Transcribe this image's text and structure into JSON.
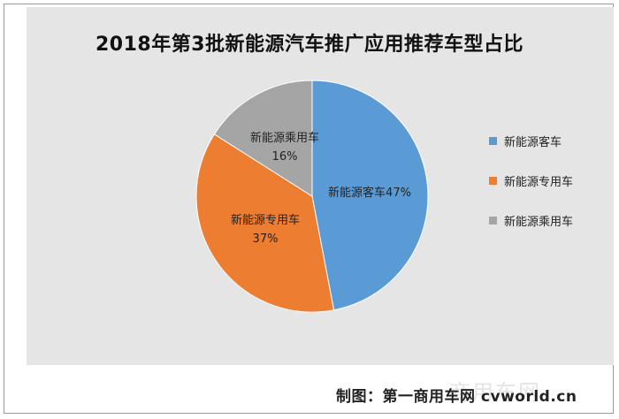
{
  "chart_data": {
    "type": "pie",
    "title": "2018年第3批新能源汽车推广应用推荐车型占比",
    "legend_position": "right",
    "slices": [
      {
        "name": "新能源客车",
        "value": 47,
        "label": "新能源客车47%",
        "color": "#5b9bd5"
      },
      {
        "name": "新能源专用车",
        "value": 37,
        "label_line1": "新能源专用车",
        "label_line2": "37%",
        "color": "#ed7d31"
      },
      {
        "name": "新能源乘用车",
        "value": 16,
        "label_line1": "新能源乘用车",
        "label_line2": "16%",
        "color": "#a5a5a5"
      }
    ]
  },
  "footer": {
    "credit": "制图：第一商用车网 cvworld.cn",
    "watermark": "商用车网"
  }
}
